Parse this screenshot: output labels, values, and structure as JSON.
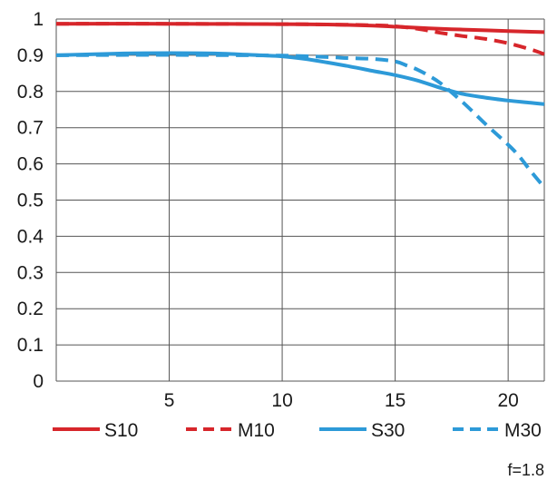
{
  "chart_data": {
    "type": "line",
    "title": "",
    "xlabel": "",
    "ylabel": "",
    "xlim": [
      0,
      21.6
    ],
    "ylim": [
      0,
      1
    ],
    "x_ticks": [
      5,
      10,
      15,
      20
    ],
    "x_tick_labels": [
      "5",
      "10",
      "15",
      "20"
    ],
    "y_ticks": [
      0,
      0.1,
      0.2,
      0.3,
      0.4,
      0.5,
      0.6,
      0.7,
      0.8,
      0.9,
      1
    ],
    "y_tick_labels": [
      "0",
      "0.1",
      "0.2",
      "0.3",
      "0.4",
      "0.5",
      "0.6",
      "0.7",
      "0.8",
      "0.9",
      "1"
    ],
    "grid": true,
    "legend_position": "bottom",
    "series": [
      {
        "name": "S10",
        "color": "#d7262b",
        "dash": "solid",
        "x": [
          0,
          5,
          10,
          12,
          14,
          15,
          16,
          17,
          18,
          19,
          20,
          21,
          21.6
        ],
        "y": [
          0.987,
          0.987,
          0.986,
          0.985,
          0.982,
          0.979,
          0.976,
          0.973,
          0.971,
          0.969,
          0.967,
          0.965,
          0.964
        ]
      },
      {
        "name": "M10",
        "color": "#d7262b",
        "dash": "dashed",
        "x": [
          0,
          5,
          10,
          12,
          14,
          15,
          16,
          17,
          18,
          19,
          20,
          21,
          21.6
        ],
        "y": [
          0.987,
          0.987,
          0.986,
          0.985,
          0.983,
          0.98,
          0.973,
          0.962,
          0.953,
          0.945,
          0.933,
          0.916,
          0.903
        ]
      },
      {
        "name": "S30",
        "color": "#2d9ad8",
        "dash": "solid",
        "x": [
          0,
          3,
          5,
          7,
          9,
          10,
          11,
          12,
          13,
          14,
          15,
          16,
          17,
          18,
          19,
          20,
          21,
          21.6
        ],
        "y": [
          0.9,
          0.905,
          0.906,
          0.905,
          0.9,
          0.897,
          0.89,
          0.88,
          0.869,
          0.857,
          0.845,
          0.83,
          0.81,
          0.793,
          0.783,
          0.775,
          0.769,
          0.765
        ]
      },
      {
        "name": "M30",
        "color": "#2d9ad8",
        "dash": "dashed",
        "x": [
          0,
          5,
          10,
          12,
          13,
          14,
          15,
          15.5,
          16,
          16.5,
          17,
          18,
          19,
          20,
          20.5,
          21,
          21.6
        ],
        "y": [
          0.9,
          0.901,
          0.899,
          0.895,
          0.892,
          0.89,
          0.883,
          0.872,
          0.86,
          0.843,
          0.823,
          0.77,
          0.71,
          0.653,
          0.62,
          0.58,
          0.535
        ]
      }
    ]
  },
  "aperture_label": "f=1.8"
}
